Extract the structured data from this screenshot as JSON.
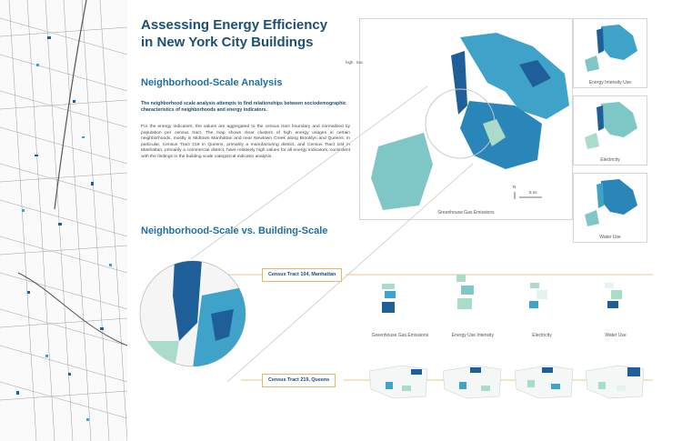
{
  "title": {
    "line1": "Assessing Energy Efficiency",
    "line2": "in New York City Buildings"
  },
  "neighborhood": {
    "heading": "Neighborhood-Scale Analysis",
    "lead": "The neighborhood scale analysis attempts to find relationships between sociodemographic characteristics of neighborhoods and energy indicators.",
    "body": "For the energy indicators, the values are aggregated to the census tract boundary and normalized by population per census tract. The map shows clear clusters of high energy usages in certain neighborhoods, mostly in Midtown Manhattan and near Newtown Creek along Brooklyn and Queens. In particular, Census Tract 219 in Queens, primarily a manufacturing district, and Census Tract 104 in Manhattan, primarily a commercial district, have relatively high values for all energy indicators, consistent with the findings in the building scale categorical indicator analysis."
  },
  "vs_heading": "Neighborhood-Scale vs. Building-Scale",
  "main_map": {
    "caption": "Greenhouse Gas Emissions",
    "legend_high": "high",
    "legend_low": "low",
    "scale": "5 mi",
    "north": "N"
  },
  "small_maps": [
    {
      "caption": "Energy Intensity Use"
    },
    {
      "caption": "Electricity"
    },
    {
      "caption": "Water Use"
    }
  ],
  "tracts": [
    {
      "label": "Census Tract 104, Manhattan"
    },
    {
      "label": "Census Tract 219, Queens"
    }
  ],
  "indicator_captions": [
    "Greenhouse Gas Emissions",
    "Energy Use Intensity",
    "Electricity",
    "Water Use"
  ],
  "colors": {
    "dark": "#1f5f99",
    "mid": "#3fa3c9",
    "light": "#a9dcc9",
    "pale": "#e4f3ee",
    "accent": "#e3b86a"
  }
}
